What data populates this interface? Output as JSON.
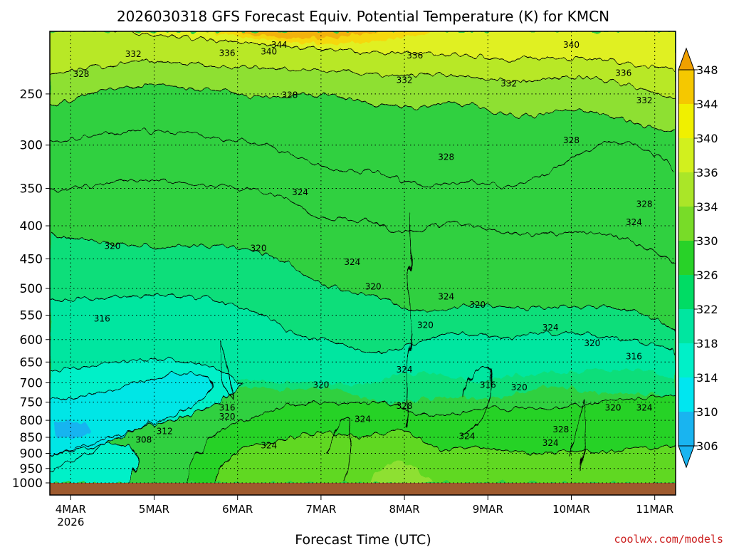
{
  "chart_data": {
    "type": "heatmap",
    "title": "2026030318 GFS Forecast Equiv. Potential Temperature (K) for KMCN",
    "xlabel": "Forecast Time (UTC)",
    "ylabel": "",
    "credit": "coolwx.com/models",
    "y_scale": "log",
    "y_inverted": true,
    "ylim": [
      1000,
      200
    ],
    "y_ticks": [
      250,
      300,
      350,
      400,
      450,
      500,
      550,
      600,
      650,
      700,
      750,
      800,
      850,
      900,
      950,
      1000
    ],
    "x_ticks": [
      {
        "label": "4MAR",
        "sublabel": "2026",
        "time": "2026-03-04T00:00Z"
      },
      {
        "label": "5MAR",
        "sublabel": "",
        "time": "2026-03-05T00:00Z"
      },
      {
        "label": "6MAR",
        "sublabel": "",
        "time": "2026-03-06T00:00Z"
      },
      {
        "label": "7MAR",
        "sublabel": "",
        "time": "2026-03-07T00:00Z"
      },
      {
        "label": "8MAR",
        "sublabel": "",
        "time": "2026-03-08T00:00Z"
      },
      {
        "label": "9MAR",
        "sublabel": "",
        "time": "2026-03-09T00:00Z"
      },
      {
        "label": "10MAR",
        "sublabel": "",
        "time": "2026-03-10T00:00Z"
      },
      {
        "label": "11MAR",
        "sublabel": "",
        "time": "2026-03-11T00:00Z"
      }
    ],
    "xlim": [
      "2026-03-03T18:00Z",
      "2026-03-11T06:00Z"
    ],
    "grid": true,
    "colorbar": {
      "placement": "right",
      "levels": [
        306,
        310,
        314,
        318,
        322,
        326,
        330,
        334,
        336,
        340,
        344,
        348
      ],
      "colors": [
        "#19b4f0",
        "#00e6f0",
        "#00f0c8",
        "#00e6a0",
        "#00dc64",
        "#28d228",
        "#78dc28",
        "#aae628",
        "#d2f01e",
        "#f0f000",
        "#f5c800",
        "#f0a000"
      ]
    },
    "contour_labels": [
      {
        "value": "344",
        "time": "2026-03-06T12:00Z",
        "p": 210
      },
      {
        "value": "340",
        "time": "2026-03-06T09:00Z",
        "p": 215
      },
      {
        "value": "336",
        "time": "2026-03-05T21:00Z",
        "p": 216
      },
      {
        "value": "332",
        "time": "2026-03-04T18:00Z",
        "p": 217
      },
      {
        "value": "328",
        "time": "2026-03-04T03:00Z",
        "p": 233
      },
      {
        "value": "328",
        "time": "2026-03-06T15:00Z",
        "p": 251
      },
      {
        "value": "336",
        "time": "2026-03-08T03:00Z",
        "p": 218
      },
      {
        "value": "332",
        "time": "2026-03-08T00:00Z",
        "p": 238
      },
      {
        "value": "340",
        "time": "2026-03-10T00:00Z",
        "p": 210
      },
      {
        "value": "332",
        "time": "2026-03-09T06:00Z",
        "p": 241
      },
      {
        "value": "336",
        "time": "2026-03-10T15:00Z",
        "p": 232
      },
      {
        "value": "332",
        "time": "2026-03-10T21:00Z",
        "p": 256
      },
      {
        "value": "328",
        "time": "2026-03-08T12:00Z",
        "p": 313
      },
      {
        "value": "328",
        "time": "2026-03-10T00:00Z",
        "p": 295
      },
      {
        "value": "324",
        "time": "2026-03-06T18:00Z",
        "p": 355
      },
      {
        "value": "328",
        "time": "2026-03-10T21:00Z",
        "p": 370
      },
      {
        "value": "324",
        "time": "2026-03-10T18:00Z",
        "p": 395
      },
      {
        "value": "320",
        "time": "2026-03-04T12:00Z",
        "p": 430
      },
      {
        "value": "320",
        "time": "2026-03-06T06:00Z",
        "p": 433
      },
      {
        "value": "324",
        "time": "2026-03-07T09:00Z",
        "p": 455
      },
      {
        "value": "320",
        "time": "2026-03-07T15:00Z",
        "p": 497
      },
      {
        "value": "324",
        "time": "2026-03-08T12:00Z",
        "p": 515
      },
      {
        "value": "320",
        "time": "2026-03-08T21:00Z",
        "p": 530
      },
      {
        "value": "316",
        "time": "2026-03-04T09:00Z",
        "p": 557
      },
      {
        "value": "320",
        "time": "2026-03-08T06:00Z",
        "p": 570
      },
      {
        "value": "324",
        "time": "2026-03-09T18:00Z",
        "p": 575
      },
      {
        "value": "320",
        "time": "2026-03-10T06:00Z",
        "p": 608
      },
      {
        "value": "316",
        "time": "2026-03-10T18:00Z",
        "p": 637
      },
      {
        "value": "324",
        "time": "2026-03-08T00:00Z",
        "p": 668
      },
      {
        "value": "320",
        "time": "2026-03-07T00:00Z",
        "p": 705
      },
      {
        "value": "316",
        "time": "2026-03-09T00:00Z",
        "p": 705
      },
      {
        "value": "320",
        "time": "2026-03-09T09:00Z",
        "p": 712
      },
      {
        "value": "328",
        "time": "2026-03-08T00:00Z",
        "p": 760
      },
      {
        "value": "316",
        "time": "2026-03-05T21:00Z",
        "p": 765
      },
      {
        "value": "320",
        "time": "2026-03-05T21:00Z",
        "p": 790
      },
      {
        "value": "320",
        "time": "2026-03-10T12:00Z",
        "p": 765
      },
      {
        "value": "324",
        "time": "2026-03-10T21:00Z",
        "p": 765
      },
      {
        "value": "324",
        "time": "2026-03-07T12:00Z",
        "p": 797
      },
      {
        "value": "312",
        "time": "2026-03-05T03:00Z",
        "p": 832
      },
      {
        "value": "308",
        "time": "2026-03-04T21:00Z",
        "p": 858
      },
      {
        "value": "328",
        "time": "2026-03-09T21:00Z",
        "p": 827
      },
      {
        "value": "324",
        "time": "2026-03-08T18:00Z",
        "p": 847
      },
      {
        "value": "324",
        "time": "2026-03-06T09:00Z",
        "p": 875
      },
      {
        "value": "324",
        "time": "2026-03-09T18:00Z",
        "p": 867
      }
    ]
  }
}
